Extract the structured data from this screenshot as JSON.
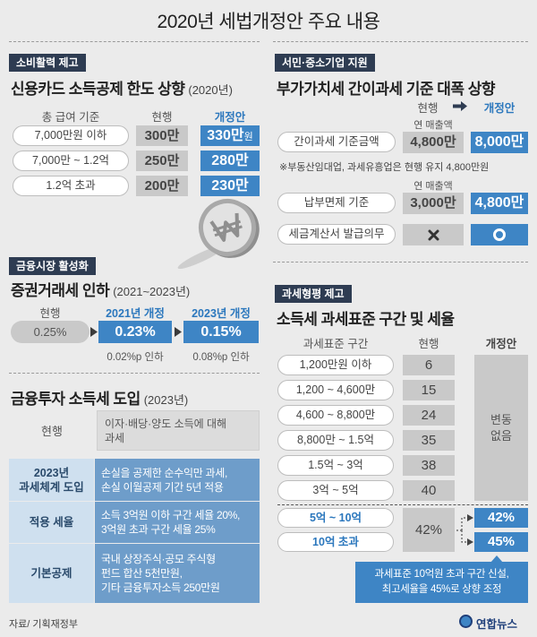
{
  "title": "2020년 세법개정안 주요 내용",
  "colors": {
    "background": "#ebebeb",
    "navy_tag": "#2e3c52",
    "accent_blue": "#3e85c5",
    "blue_text": "#2b77bd",
    "gray_box": "#c9c9c9",
    "light_blue": "#cfe0ef",
    "mid_blue": "#6e9dca"
  },
  "icons": {
    "won": "won-coin-icon",
    "arrow": "arrow-right-icon",
    "x_mark": "x-mark-icon",
    "circle": "circle-icon",
    "logo": "yonhap-emblem-icon"
  },
  "credit_card": {
    "tag": "소비활력 제고",
    "heading": "신용카드 소득공제 한도 상향",
    "period": "(2020년)",
    "headers": {
      "base": "총 급여 기준",
      "current": "현행",
      "revised": "개정안"
    },
    "rows": [
      {
        "base": "7,000만원 이하",
        "current": "300만",
        "revised": "330만",
        "revised_unit": "원"
      },
      {
        "base": "7,000만 ~ 1.2억",
        "current": "250만",
        "revised": "280만"
      },
      {
        "base": "1.2억 초과",
        "current": "200만",
        "revised": "230만"
      }
    ]
  },
  "securities_tax": {
    "tag": "금융시장 활성화",
    "heading": "증권거래세 인하",
    "period": "(2021~2023년)",
    "current_label": "현행",
    "current": "0.25%",
    "stages": [
      {
        "label": "2021년 개정",
        "value": "0.23%",
        "change": "0.02%p 인하"
      },
      {
        "label": "2023년 개정",
        "value": "0.15%",
        "change": "0.08%p 인하"
      }
    ]
  },
  "financial_income_tax": {
    "heading": "금융투자 소득세 도입",
    "period": "(2023년)",
    "current_label": "현행",
    "current": "이자·배당·양도 소득에 대해\n과세",
    "rows": [
      {
        "label": "2023년\n과세체계 도입",
        "text": "손실을 공제한 순수익만 과세,\n손실 이월공제 기간 5년 적용"
      },
      {
        "label": "적용 세율",
        "text": "소득 3억원 이하 구간 세율 20%,\n3억원 초과 구간 세율 25%"
      },
      {
        "label": "기본공제",
        "text": "국내 상장주식·공모 주식형\n펀드 합산 5천만원,\n기타 금융투자소득 250만원"
      }
    ]
  },
  "vat": {
    "tag": "서민·중소기업 지원",
    "heading": "부가가치세 간이과세 기준 대폭 상향",
    "headers": {
      "current": "현행",
      "revised": "개정안"
    },
    "sales_label": "연 매출액",
    "rows": [
      {
        "label": "간이과세 기준금액",
        "current": "4,800만",
        "revised": "8,000만"
      },
      {
        "label": "납부면제 기준",
        "current": "3,000만",
        "revised": "4,800만"
      },
      {
        "label": "세금계산서 발급의무",
        "current_icon": "x-mark-icon",
        "revised_icon": "circle-icon"
      }
    ],
    "note": "※부동산임대업, 과세유흥업은 현행 유지 4,800만원"
  },
  "income_tax": {
    "tag": "과세형평 제고",
    "heading": "소득세 과세표준 구간 및 세율",
    "headers": {
      "bracket": "과세표준 구간",
      "current": "현행",
      "revised": "개정안"
    },
    "brackets": [
      {
        "range": "1,200만원 이하",
        "current": "6"
      },
      {
        "range": "1,200 ~ 4,600만",
        "current": "15"
      },
      {
        "range": "4,600 ~ 8,800만",
        "current": "24"
      },
      {
        "range": "8,800만 ~ 1.5억",
        "current": "35"
      },
      {
        "range": "1.5억 ~ 3억",
        "current": "38"
      },
      {
        "range": "3억 ~ 5억",
        "current": "40"
      }
    ],
    "unchanged": "변동\n없음",
    "top_current": "42%",
    "new_brackets": [
      {
        "range": "5억 ~ 10억",
        "revised": "42%"
      },
      {
        "range": "10억 초과",
        "revised": "45%"
      }
    ],
    "callout": "과세표준 10억원 초과 구간 신설,\n최고세율을 45%로 상향 조정"
  },
  "footer": {
    "source": "자료/ 기획재정부",
    "logo": "연합뉴스"
  }
}
